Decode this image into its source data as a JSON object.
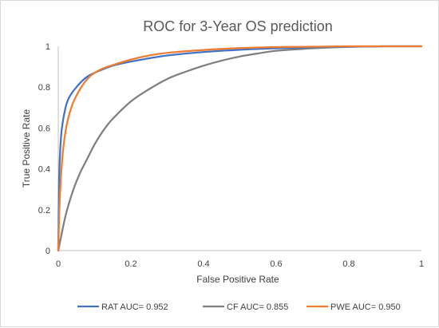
{
  "chart_data": {
    "type": "line",
    "title": "ROC for 3-Year OS prediction",
    "xlabel": "False Positive Rate",
    "ylabel": "True Positive Rate",
    "xlim": [
      0,
      1
    ],
    "ylim": [
      0,
      1
    ],
    "xticks": [
      0,
      0.2,
      0.4,
      0.6,
      0.8,
      1
    ],
    "yticks": [
      0,
      0.2,
      0.4,
      0.6,
      0.8,
      1
    ],
    "xtick_labels": [
      "0",
      "0.2",
      "0.4",
      "0.6",
      "0.8",
      "1"
    ],
    "ytick_labels": [
      "0",
      "0.2",
      "0.4",
      "0.6",
      "0.8",
      "1"
    ],
    "grid": false,
    "legend_position": "bottom",
    "series": [
      {
        "name": "RAT AUC= 0.952",
        "color": "#4472c4",
        "points": [
          [
            0,
            0
          ],
          [
            0.002,
            0.32
          ],
          [
            0.005,
            0.48
          ],
          [
            0.01,
            0.6
          ],
          [
            0.02,
            0.7
          ],
          [
            0.03,
            0.75
          ],
          [
            0.05,
            0.8
          ],
          [
            0.075,
            0.845
          ],
          [
            0.1,
            0.87
          ],
          [
            0.15,
            0.905
          ],
          [
            0.2,
            0.925
          ],
          [
            0.3,
            0.955
          ],
          [
            0.4,
            0.972
          ],
          [
            0.5,
            0.983
          ],
          [
            0.6,
            0.99
          ],
          [
            0.7,
            0.995
          ],
          [
            0.8,
            0.998
          ],
          [
            0.9,
            1.0
          ],
          [
            1.0,
            1.0
          ]
        ]
      },
      {
        "name": "CF AUC= 0.855",
        "color": "#7f7f7f",
        "points": [
          [
            0,
            0
          ],
          [
            0.02,
            0.17
          ],
          [
            0.04,
            0.29
          ],
          [
            0.06,
            0.38
          ],
          [
            0.08,
            0.45
          ],
          [
            0.1,
            0.52
          ],
          [
            0.125,
            0.59
          ],
          [
            0.15,
            0.645
          ],
          [
            0.2,
            0.73
          ],
          [
            0.25,
            0.79
          ],
          [
            0.3,
            0.84
          ],
          [
            0.35,
            0.875
          ],
          [
            0.4,
            0.905
          ],
          [
            0.45,
            0.93
          ],
          [
            0.5,
            0.95
          ],
          [
            0.55,
            0.965
          ],
          [
            0.6,
            0.978
          ],
          [
            0.7,
            0.99
          ],
          [
            0.8,
            0.997
          ],
          [
            0.9,
            1.0
          ],
          [
            1.0,
            1.0
          ]
        ]
      },
      {
        "name": "PWE AUC= 0.950",
        "color": "#ed7d31",
        "points": [
          [
            0,
            0
          ],
          [
            0.003,
            0.2
          ],
          [
            0.008,
            0.38
          ],
          [
            0.015,
            0.52
          ],
          [
            0.025,
            0.63
          ],
          [
            0.04,
            0.72
          ],
          [
            0.06,
            0.79
          ],
          [
            0.08,
            0.84
          ],
          [
            0.1,
            0.87
          ],
          [
            0.125,
            0.893
          ],
          [
            0.15,
            0.908
          ],
          [
            0.2,
            0.935
          ],
          [
            0.25,
            0.955
          ],
          [
            0.3,
            0.968
          ],
          [
            0.4,
            0.982
          ],
          [
            0.5,
            0.991
          ],
          [
            0.6,
            0.996
          ],
          [
            0.7,
            0.998
          ],
          [
            0.8,
            1.0
          ],
          [
            1.0,
            1.0
          ]
        ]
      }
    ]
  }
}
